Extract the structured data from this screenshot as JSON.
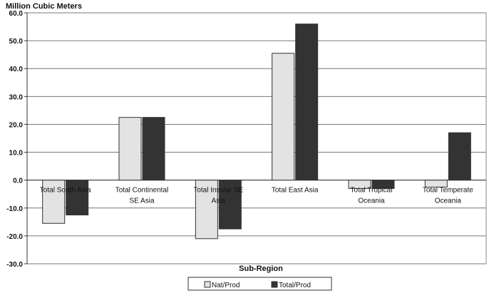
{
  "chart_data": {
    "type": "bar",
    "title": "",
    "ylabel": "Million Cubic Meters",
    "xlabel": "Sub-Region",
    "ylim": [
      -30,
      60
    ],
    "yticks": [
      -30,
      -20,
      -10,
      0,
      10,
      20,
      30,
      40,
      50,
      60
    ],
    "ytick_labels": [
      "-30.0",
      "-20.0",
      "-10.0",
      "0.0",
      "10.0",
      "20.0",
      "30.0",
      "40.0",
      "50.0",
      "60.0"
    ],
    "grid": true,
    "legend": "bottom",
    "categories": [
      "Total South Asia",
      "Total Continental SE Asia",
      "Total Insular SE Asia",
      "Total East Asia",
      "Total Tropical Oceania",
      "Total Temperate Oceania"
    ],
    "series": [
      {
        "name": "Nat/Prod",
        "color": "#e3e3e3",
        "values": [
          -15.5,
          22.5,
          -21.0,
          45.5,
          -3.0,
          -2.5
        ]
      },
      {
        "name": "Total/Prod",
        "color": "#333333",
        "values": [
          -12.5,
          22.5,
          -17.5,
          56.0,
          -3.0,
          17.0
        ]
      }
    ]
  }
}
